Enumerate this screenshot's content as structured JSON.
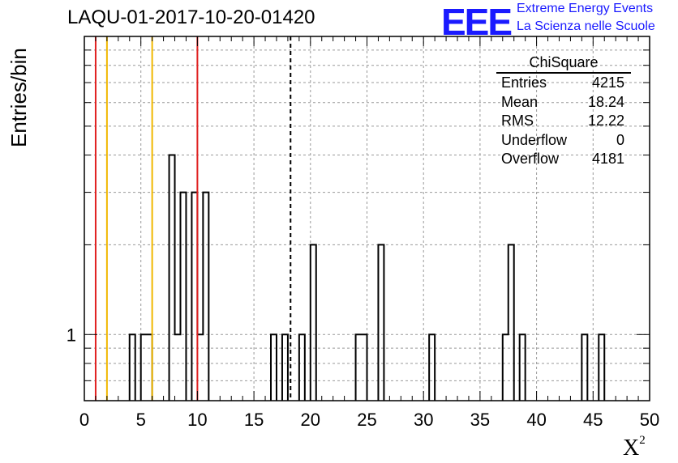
{
  "title": "LAQU-01-2017-10-20-01420",
  "logo": {
    "mark": "EEE",
    "line1": "Extreme Energy Events",
    "line2": "La Scienza nelle Scuole"
  },
  "stats": {
    "title": "ChiSquare",
    "rows": [
      {
        "label": "Entries",
        "value": "4215"
      },
      {
        "label": "Mean",
        "value": "18.24"
      },
      {
        "label": "RMS",
        "value": "12.22"
      },
      {
        "label": "Underflow",
        "value": "0"
      },
      {
        "label": "Overflow",
        "value": "4181"
      }
    ]
  },
  "chart_data": {
    "type": "bar",
    "title": "LAQU-01-2017-10-20-01420",
    "xlabel": "X",
    "xlabel_sup": "2",
    "ylabel": "Entries/bin",
    "xlim": [
      0,
      50
    ],
    "yscale": "log",
    "ylim": [
      0.6,
      10
    ],
    "bin_width": 0.5,
    "x_ticks": [
      0,
      5,
      10,
      15,
      20,
      25,
      30,
      35,
      40,
      45,
      50
    ],
    "y_tick_labels": [
      {
        "value": 1,
        "label": "1"
      }
    ],
    "grid": true,
    "bins": [
      {
        "x": 4.0,
        "y": 1
      },
      {
        "x": 5.0,
        "y": 1
      },
      {
        "x": 5.5,
        "y": 1
      },
      {
        "x": 7.5,
        "y": 4
      },
      {
        "x": 8.0,
        "y": 1
      },
      {
        "x": 8.5,
        "y": 3
      },
      {
        "x": 9.5,
        "y": 3
      },
      {
        "x": 10.0,
        "y": 1
      },
      {
        "x": 10.5,
        "y": 3
      },
      {
        "x": 16.5,
        "y": 1
      },
      {
        "x": 17.5,
        "y": 1
      },
      {
        "x": 19.0,
        "y": 1
      },
      {
        "x": 20.0,
        "y": 2
      },
      {
        "x": 24.0,
        "y": 1
      },
      {
        "x": 24.5,
        "y": 1
      },
      {
        "x": 26.0,
        "y": 2
      },
      {
        "x": 30.5,
        "y": 1
      },
      {
        "x": 37.0,
        "y": 1
      },
      {
        "x": 37.5,
        "y": 2
      },
      {
        "x": 38.5,
        "y": 1
      },
      {
        "x": 44.0,
        "y": 1
      },
      {
        "x": 45.5,
        "y": 1
      }
    ],
    "vertical_lines": [
      {
        "x": 1.0,
        "color": "#e02020",
        "style": "solid"
      },
      {
        "x": 2.0,
        "color": "#f0b800",
        "style": "solid"
      },
      {
        "x": 6.0,
        "color": "#f0b800",
        "style": "solid"
      },
      {
        "x": 10.0,
        "color": "#e02020",
        "style": "solid"
      },
      {
        "x": 18.24,
        "color": "#000000",
        "style": "dashed"
      }
    ]
  }
}
